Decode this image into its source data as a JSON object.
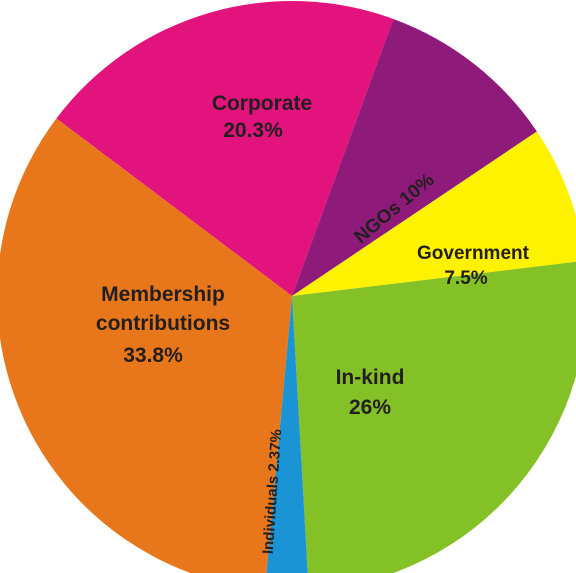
{
  "chart_data": {
    "type": "pie",
    "title": "",
    "slices": [
      {
        "id": "corporate",
        "name": "Corporate",
        "label_lines": [
          "Corporate"
        ],
        "value_label": "20.3%",
        "value": 20.3,
        "color": "#e2137c"
      },
      {
        "id": "ngos",
        "name": "NGOs",
        "label_lines": [
          "NGOs 10%"
        ],
        "value_label": "",
        "value": 10,
        "color": "#8e1b79"
      },
      {
        "id": "government",
        "name": "Government",
        "label_lines": [
          "Government"
        ],
        "value_label": "7.5%",
        "value": 7.5,
        "color": "#fff200"
      },
      {
        "id": "in-kind",
        "name": "In-kind",
        "label_lines": [
          "In-kind"
        ],
        "value_label": "26%",
        "value": 26,
        "color": "#84c126"
      },
      {
        "id": "individuals",
        "name": "Individuals",
        "label_lines": [
          "Individuals 2.37%"
        ],
        "value_label": "",
        "value": 2.37,
        "color": "#1b94d5"
      },
      {
        "id": "membership",
        "name": "Membership contributions",
        "label_lines": [
          "Membership",
          "contributions"
        ],
        "value_label": "33.8%",
        "value": 33.8,
        "color": "#e8771b"
      }
    ]
  }
}
